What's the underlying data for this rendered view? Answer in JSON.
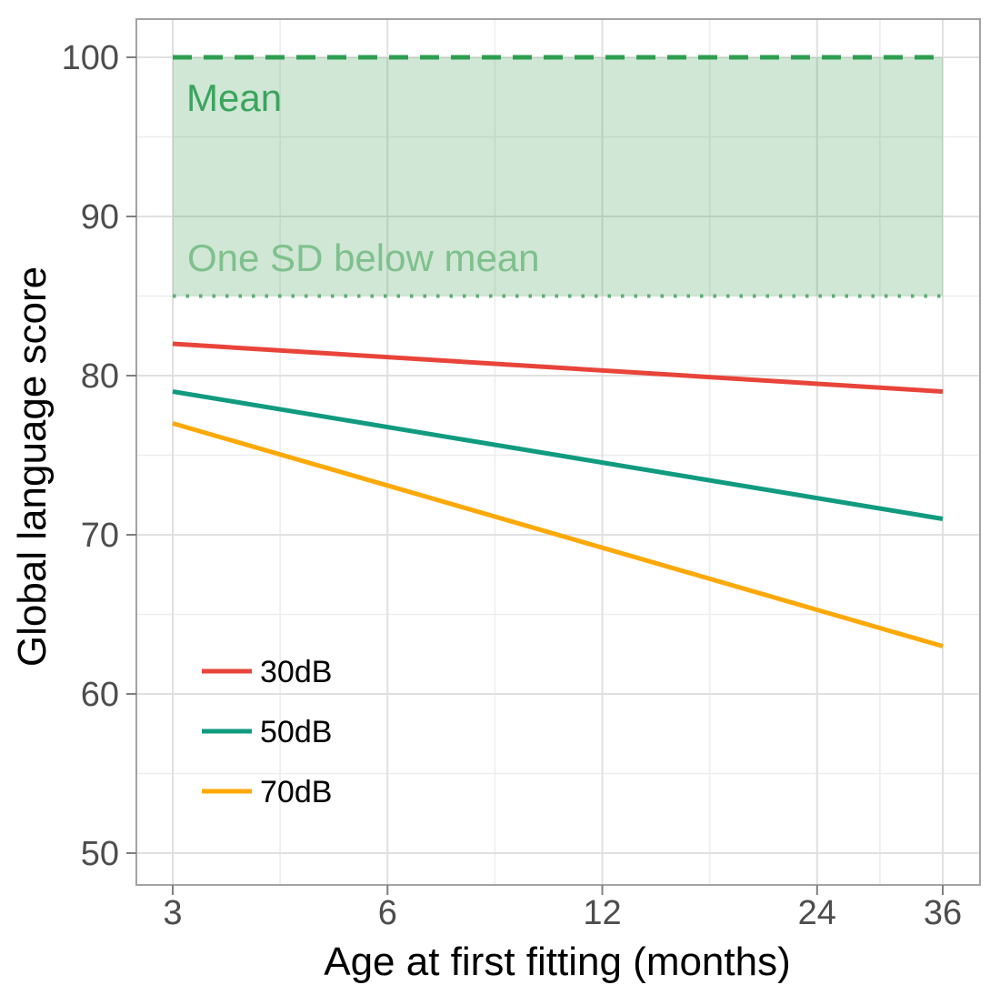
{
  "chart_data": {
    "type": "line",
    "title": "",
    "xlabel": "Age at first fitting (months)",
    "ylabel": "Global language score",
    "x_scale": "log2",
    "x_ticks": [
      3,
      6,
      12,
      24,
      36
    ],
    "x_minor_gridlines": [
      4.2426,
      8.4853,
      16.9706,
      29.3939
    ],
    "y_ticks": [
      50,
      60,
      70,
      80,
      90,
      100
    ],
    "y_minor_gridlines": [
      55,
      65,
      75,
      85,
      95
    ],
    "x_range_shown": [
      3,
      36
    ],
    "ylim": [
      48,
      102.5
    ],
    "grid": "on",
    "reference_band": {
      "x_from": 3,
      "x_to": 36,
      "y_from": 85,
      "y_to": 100,
      "fill_color": "#3EA055",
      "fill_opacity": 0.25,
      "top_line": {
        "y": 100,
        "style": "dashed",
        "color": "#2E9E50",
        "label": "Mean",
        "label_color": "#3BA45E"
      },
      "bottom_line": {
        "y": 85,
        "style": "dotted",
        "color": "#5CAD73",
        "label": "One SD below mean",
        "label_color": "#7FC08D"
      }
    },
    "series": [
      {
        "name": "30dB",
        "color": "#E8443A",
        "points": [
          {
            "x": 3,
            "y": 82
          },
          {
            "x": 36,
            "y": 79
          }
        ]
      },
      {
        "name": "50dB",
        "color": "#109B80",
        "points": [
          {
            "x": 3,
            "y": 79
          },
          {
            "x": 36,
            "y": 71
          }
        ]
      },
      {
        "name": "70dB",
        "color": "#FCA908",
        "points": [
          {
            "x": 3,
            "y": 77
          },
          {
            "x": 36,
            "y": 63
          }
        ]
      }
    ],
    "legend": {
      "position": "inside-bottom-left",
      "entries": [
        "30dB",
        "50dB",
        "70dB"
      ]
    }
  },
  "styles": {
    "background": "#FFFFFF",
    "panel_border": "#A3A3A3",
    "grid_major": "#E0E0E0",
    "grid_minor": "#EDEDED",
    "tick_color": "#7F7F7F",
    "tick_label_color": "#4D4D4D",
    "axis_title_color": "#000000",
    "legend_text_color": "#000000"
  }
}
